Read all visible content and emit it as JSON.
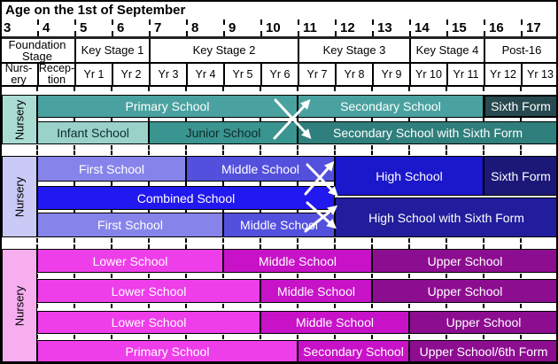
{
  "title": "Age on the 1st of September",
  "age_axis": {
    "ages": [
      "3",
      "4",
      "5",
      "6",
      "7",
      "8",
      "9",
      "10",
      "11",
      "12",
      "13",
      "14",
      "15",
      "16",
      "17"
    ]
  },
  "key_stage_row": [
    {
      "label": "Foundation\nStage",
      "from": 3,
      "to": 5
    },
    {
      "label": "Key Stage 1",
      "from": 5,
      "to": 7
    },
    {
      "label": "Key Stage 2",
      "from": 7,
      "to": 11
    },
    {
      "label": "Key Stage 3",
      "from": 11,
      "to": 14
    },
    {
      "label": "Key Stage 4",
      "from": 14,
      "to": 16
    },
    {
      "label": "Post-16",
      "from": 16,
      "to": 18
    }
  ],
  "year_row": [
    "Nurs-\nery",
    "Recep-\ntion",
    "Yr 1",
    "Yr 2",
    "Yr 3",
    "Yr 4",
    "Yr 5",
    "Yr 6",
    "Yr 7",
    "Yr 8",
    "Yr 9",
    "Yr 10",
    "Yr 11",
    "Yr 12",
    "Yr 13"
  ],
  "colors": {
    "teal_nursery": "#AADCD4",
    "teal_light": "#9AD2CA",
    "teal_mid": "#4AA2A0",
    "teal_mid2": "#3A9490",
    "teal_dark": "#2F7F7C",
    "teal_darkest": "#27494F",
    "blue_nursery": "#CBC9F5",
    "blue_first": "#8684EA",
    "blue_middle": "#5350DE",
    "blue_combined": "#2218F0",
    "blue_high": "#1B17CB",
    "blue_sixth": "#1B1878",
    "blue_hswsf": "#211D9C",
    "pink_nursery": "#F6AEEF",
    "pink_lower": "#EE3EE9",
    "pink_middle": "#C712C7",
    "pink_upper": "#8D0D91",
    "text_light": "#FFFFFF",
    "text_dark": "#0B2B2B"
  },
  "sections": [
    {
      "id": "teal",
      "nursery_label": "Nursery",
      "nursery_color": "teal_nursery",
      "bars": [
        {
          "label": "Primary School",
          "from": 4,
          "to": 11,
          "row": "r0",
          "color": "teal_mid",
          "text": "light"
        },
        {
          "label": "Secondary School",
          "from": 11,
          "to": 16,
          "row": "r0",
          "color": "teal_mid",
          "text": "light"
        },
        {
          "label": "Sixth Form",
          "from": 16,
          "to": 18,
          "row": "r0",
          "color": "teal_darkest",
          "text": "light",
          "thick": true
        },
        {
          "label": "Infant School",
          "from": 4,
          "to": 7,
          "row": "r1",
          "color": "teal_light",
          "text": "dark"
        },
        {
          "label": "Junior School",
          "from": 7,
          "to": 11,
          "row": "r1",
          "color": "teal_mid2",
          "text": "dark"
        },
        {
          "label": "Secondary School with Sixth Form",
          "from": 11,
          "to": 18,
          "row": "r1",
          "color": "teal_dark",
          "text": "light"
        }
      ]
    },
    {
      "id": "blue",
      "nursery_label": "Nursery",
      "nursery_color": "blue_nursery",
      "bars": [
        {
          "label": "First School",
          "from": 4,
          "to": 8,
          "row": "r0",
          "color": "blue_first",
          "text": "light"
        },
        {
          "label": "Middle School",
          "from": 8,
          "to": 12,
          "row": "r0",
          "color": "blue_middle",
          "text": "light"
        },
        {
          "label": "High School",
          "from": 12,
          "to": 16,
          "row": "hsTop",
          "color": "blue_high",
          "text": "light"
        },
        {
          "label": "Sixth Form",
          "from": 16,
          "to": 18,
          "row": "hsTop",
          "color": "blue_sixth",
          "text": "light"
        },
        {
          "label": "Combined School",
          "from": 4,
          "to": 12,
          "row": "r1",
          "color": "blue_combined",
          "text": "light"
        },
        {
          "label": "High School with Sixth Form",
          "from": 12,
          "to": 18,
          "row": "hsBot",
          "color": "blue_hswsf",
          "text": "light"
        },
        {
          "label": "First School",
          "from": 4,
          "to": 9,
          "row": "r2",
          "color": "blue_first",
          "text": "light"
        },
        {
          "label": "Middle School",
          "from": 9,
          "to": 12,
          "row": "r2",
          "color": "blue_middle",
          "text": "light"
        }
      ]
    },
    {
      "id": "magenta",
      "nursery_label": "Nursery",
      "nursery_color": "pink_nursery",
      "bars": [
        {
          "label": "Lower School",
          "from": 4,
          "to": 9,
          "row": "r0",
          "color": "pink_lower",
          "text": "light"
        },
        {
          "label": "Middle School",
          "from": 9,
          "to": 13,
          "row": "r0",
          "color": "pink_middle",
          "text": "light"
        },
        {
          "label": "Upper School",
          "from": 13,
          "to": 18,
          "row": "r0",
          "color": "pink_upper",
          "text": "light"
        },
        {
          "label": "Lower School",
          "from": 4,
          "to": 10,
          "row": "r1",
          "color": "pink_lower",
          "text": "light"
        },
        {
          "label": "Middle School",
          "from": 10,
          "to": 13,
          "row": "r1",
          "color": "pink_middle",
          "text": "light"
        },
        {
          "label": "Upper School",
          "from": 13,
          "to": 18,
          "row": "r1",
          "color": "pink_upper",
          "text": "light"
        },
        {
          "label": "Lower School",
          "from": 4,
          "to": 10,
          "row": "r2",
          "color": "pink_lower",
          "text": "light"
        },
        {
          "label": "Middle School",
          "from": 10,
          "to": 14,
          "row": "r2",
          "color": "pink_middle",
          "text": "light"
        },
        {
          "label": "Upper School",
          "from": 14,
          "to": 18,
          "row": "r2",
          "color": "pink_upper",
          "text": "light"
        },
        {
          "label": "Primary School",
          "from": 4,
          "to": 11,
          "row": "r3",
          "color": "pink_lower",
          "text": "light"
        },
        {
          "label": "Secondary School",
          "from": 11,
          "to": 14,
          "row": "r3",
          "color": "pink_middle",
          "text": "light"
        },
        {
          "label": "Upper School/6th Form",
          "from": 14,
          "to": 18,
          "row": "r3",
          "color": "pink_upper",
          "text": "light"
        }
      ]
    }
  ]
}
